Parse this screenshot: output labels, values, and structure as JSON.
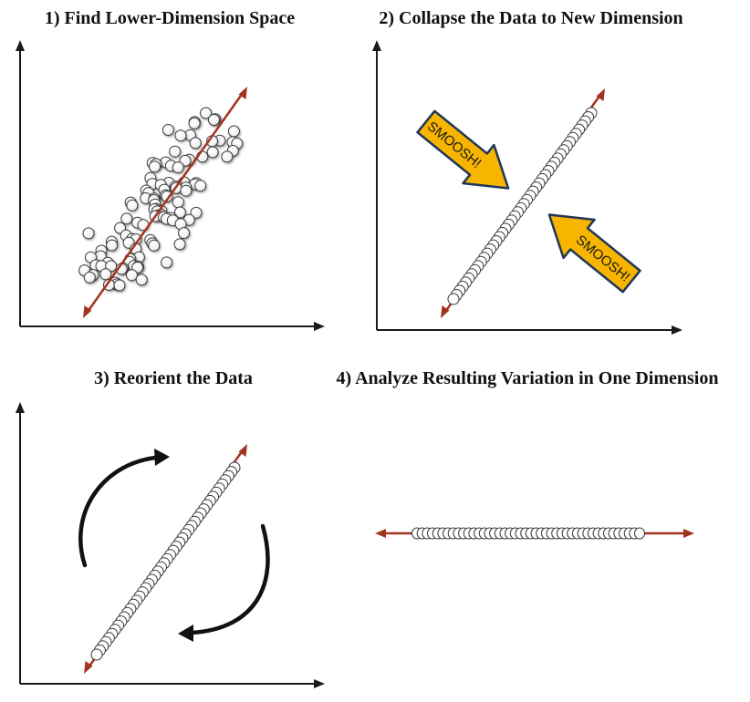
{
  "panels": [
    {
      "title": "1) Find Lower-Dimension Space"
    },
    {
      "title": "2) Collapse the Data to New Dimension"
    },
    {
      "title": "3) Reorient the Data"
    },
    {
      "title": "4) Analyze Resulting Variation in One Dimension"
    }
  ],
  "callouts": {
    "smoosh_upper": "SMOOSH!",
    "smoosh_lower": "SMOOSH!"
  },
  "colors": {
    "axis": "#1a1a1a",
    "principal_axis": "#a33321",
    "point_fill": "#ffffff",
    "point_stroke": "#444444",
    "callout_fill": "#f7b500",
    "callout_stroke": "#1f3658",
    "rotation_arrow": "#111111"
  }
}
